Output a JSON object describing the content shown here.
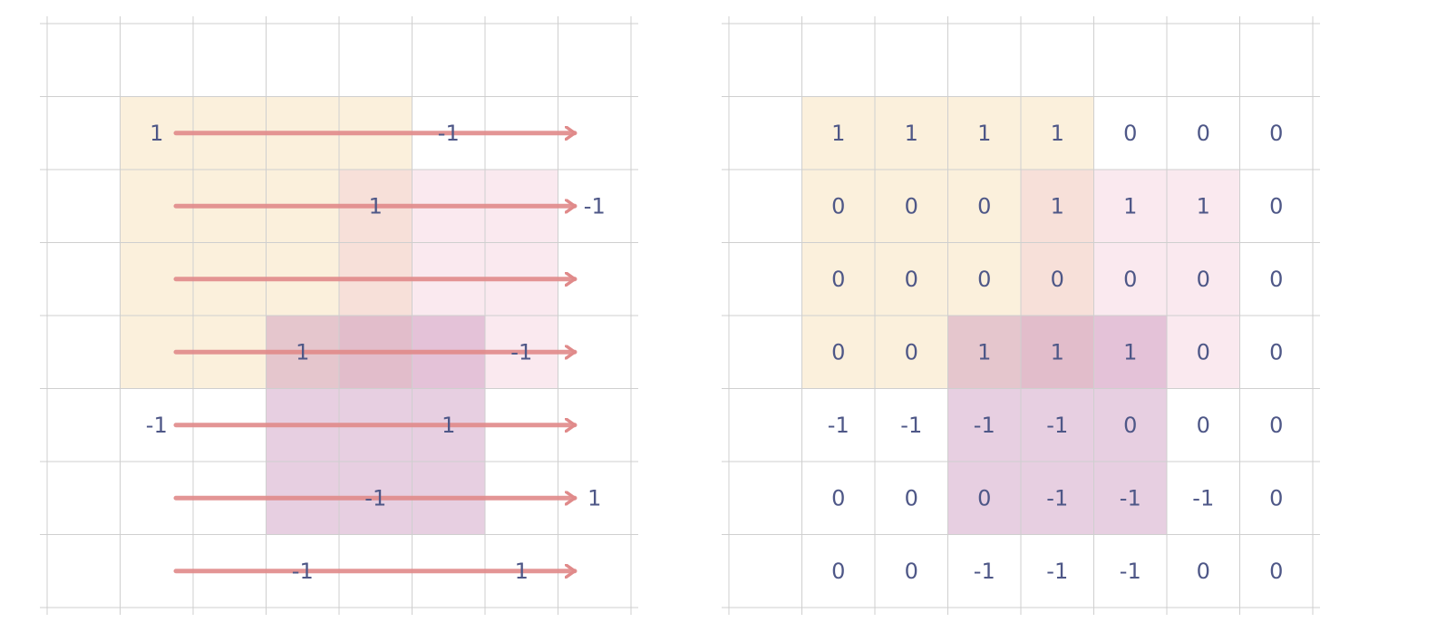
{
  "colors": {
    "grid": "#cfcfcf",
    "arrow": "#e08a8a",
    "label": "#4e5787",
    "fill_yellow": "#f6dcab",
    "fill_pink": "#f1c6d4",
    "fill_purple": "#c58cb7"
  },
  "left_panel": {
    "grid_size": 8,
    "rects": [
      {
        "row0": 1,
        "col0": 1,
        "rows": 4,
        "cols": 4,
        "color": "yellow"
      },
      {
        "row0": 2,
        "col0": 4,
        "rows": 3,
        "cols": 3,
        "color": "pink"
      },
      {
        "row0": 4,
        "col0": 3,
        "rows": 3,
        "cols": 3,
        "color": "purple"
      }
    ],
    "arrow_rows": [
      1,
      2,
      3,
      4,
      5,
      6,
      7
    ],
    "labels": [
      {
        "row": 1,
        "col": 1,
        "text": "1"
      },
      {
        "row": 1,
        "col": 5,
        "text": "-1"
      },
      {
        "row": 2,
        "col": 4,
        "text": "1"
      },
      {
        "row": 2,
        "col": 7,
        "text": "-1"
      },
      {
        "row": 4,
        "col": 3,
        "text": "1"
      },
      {
        "row": 4,
        "col": 6,
        "text": "-1"
      },
      {
        "row": 5,
        "col": 1,
        "text": "-1"
      },
      {
        "row": 5,
        "col": 5,
        "text": "1"
      },
      {
        "row": 6,
        "col": 4,
        "text": "-1"
      },
      {
        "row": 6,
        "col": 7,
        "text": "1"
      },
      {
        "row": 7,
        "col": 3,
        "text": "-1"
      },
      {
        "row": 7,
        "col": 6,
        "text": "1"
      }
    ]
  },
  "right_panel": {
    "grid_size": 8,
    "rects": [
      {
        "row0": 1,
        "col0": 1,
        "rows": 4,
        "cols": 4,
        "color": "yellow"
      },
      {
        "row0": 2,
        "col0": 4,
        "rows": 3,
        "cols": 3,
        "color": "pink"
      },
      {
        "row0": 4,
        "col0": 3,
        "rows": 3,
        "cols": 3,
        "color": "purple"
      }
    ],
    "matrix": [
      [
        "1",
        "1",
        "1",
        "1",
        "0",
        "0",
        "0"
      ],
      [
        "0",
        "0",
        "0",
        "1",
        "1",
        "1",
        "0"
      ],
      [
        "0",
        "0",
        "0",
        "0",
        "0",
        "0",
        "0"
      ],
      [
        "0",
        "0",
        "1",
        "1",
        "1",
        "0",
        "0"
      ],
      [
        "-1",
        "-1",
        "-1",
        "-1",
        "0",
        "0",
        "0"
      ],
      [
        "0",
        "0",
        "0",
        "-1",
        "-1",
        "-1",
        "0"
      ],
      [
        "0",
        "0",
        "-1",
        "-1",
        "-1",
        "0",
        "0"
      ]
    ]
  }
}
